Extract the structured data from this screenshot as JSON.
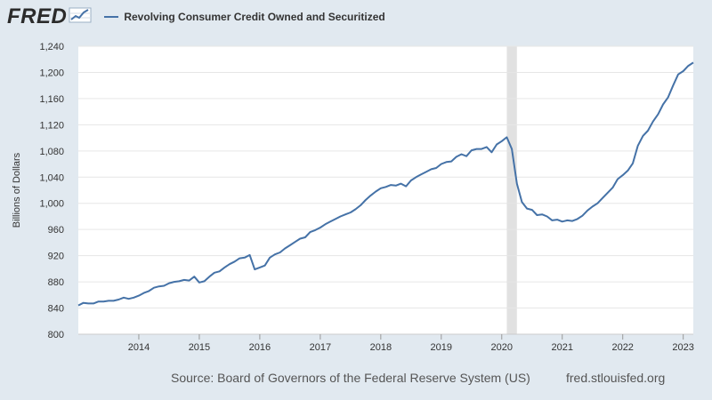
{
  "header": {
    "logo_text": "FRED",
    "logo_icon": "fred-graph-icon",
    "legend_label": "Revolving Consumer Credit Owned and Securitized"
  },
  "footer": {
    "source": "Source: Board of Governors of the Federal Reserve System (US)",
    "site": "fred.stlouisfed.org"
  },
  "colors": {
    "line": "#4572a7",
    "background": "#e1e9f0",
    "plot_background": "#ffffff",
    "recession_band": "#e1e1e1"
  },
  "chart_data": {
    "type": "line",
    "title": "",
    "xlabel": "",
    "ylabel": "Billions of Dollars",
    "ylim": [
      800,
      1240
    ],
    "yticks": [
      800,
      840,
      880,
      920,
      960,
      1000,
      1040,
      1080,
      1120,
      1160,
      1200,
      1240
    ],
    "ytick_labels": [
      "800",
      "840",
      "880",
      "920",
      "960",
      "1,000",
      "1,040",
      "1,080",
      "1,120",
      "1,160",
      "1,200",
      "1,240"
    ],
    "xlim": [
      "2013-01",
      "2023-03"
    ],
    "xticks": [
      "2014",
      "2015",
      "2016",
      "2017",
      "2018",
      "2019",
      "2020",
      "2021",
      "2022",
      "2023"
    ],
    "grid": "horizontal",
    "recession": {
      "start": "2020-02",
      "end": "2020-04"
    },
    "series": [
      {
        "name": "Revolving Consumer Credit Owned and Securitized",
        "points": [
          [
            "2013-01",
            844
          ],
          [
            "2013-02",
            848
          ],
          [
            "2013-03",
            847
          ],
          [
            "2013-04",
            847
          ],
          [
            "2013-05",
            850
          ],
          [
            "2013-06",
            850
          ],
          [
            "2013-07",
            851
          ],
          [
            "2013-08",
            851
          ],
          [
            "2013-09",
            853
          ],
          [
            "2013-10",
            856
          ],
          [
            "2013-11",
            854
          ],
          [
            "2013-12",
            856
          ],
          [
            "2014-01",
            859
          ],
          [
            "2014-02",
            863
          ],
          [
            "2014-03",
            866
          ],
          [
            "2014-04",
            871
          ],
          [
            "2014-05",
            873
          ],
          [
            "2014-06",
            874
          ],
          [
            "2014-07",
            878
          ],
          [
            "2014-08",
            880
          ],
          [
            "2014-09",
            881
          ],
          [
            "2014-10",
            883
          ],
          [
            "2014-11",
            882
          ],
          [
            "2014-12",
            888
          ],
          [
            "2015-01",
            879
          ],
          [
            "2015-02",
            881
          ],
          [
            "2015-03",
            888
          ],
          [
            "2015-04",
            894
          ],
          [
            "2015-05",
            896
          ],
          [
            "2015-06",
            902
          ],
          [
            "2015-07",
            907
          ],
          [
            "2015-08",
            911
          ],
          [
            "2015-09",
            916
          ],
          [
            "2015-10",
            917
          ],
          [
            "2015-11",
            921
          ],
          [
            "2015-12",
            899
          ],
          [
            "2016-01",
            902
          ],
          [
            "2016-02",
            905
          ],
          [
            "2016-03",
            917
          ],
          [
            "2016-04",
            922
          ],
          [
            "2016-05",
            925
          ],
          [
            "2016-06",
            931
          ],
          [
            "2016-07",
            936
          ],
          [
            "2016-08",
            941
          ],
          [
            "2016-09",
            946
          ],
          [
            "2016-10",
            948
          ],
          [
            "2016-11",
            956
          ],
          [
            "2016-12",
            959
          ],
          [
            "2017-01",
            963
          ],
          [
            "2017-02",
            968
          ],
          [
            "2017-03",
            972
          ],
          [
            "2017-04",
            976
          ],
          [
            "2017-05",
            980
          ],
          [
            "2017-06",
            983
          ],
          [
            "2017-07",
            986
          ],
          [
            "2017-08",
            991
          ],
          [
            "2017-09",
            997
          ],
          [
            "2017-10",
            1005
          ],
          [
            "2017-11",
            1012
          ],
          [
            "2017-12",
            1018
          ],
          [
            "2018-01",
            1023
          ],
          [
            "2018-02",
            1025
          ],
          [
            "2018-03",
            1028
          ],
          [
            "2018-04",
            1027
          ],
          [
            "2018-05",
            1030
          ],
          [
            "2018-06",
            1026
          ],
          [
            "2018-07",
            1035
          ],
          [
            "2018-08",
            1040
          ],
          [
            "2018-09",
            1044
          ],
          [
            "2018-10",
            1048
          ],
          [
            "2018-11",
            1052
          ],
          [
            "2018-12",
            1054
          ],
          [
            "2019-01",
            1060
          ],
          [
            "2019-02",
            1063
          ],
          [
            "2019-03",
            1064
          ],
          [
            "2019-04",
            1071
          ],
          [
            "2019-05",
            1075
          ],
          [
            "2019-06",
            1072
          ],
          [
            "2019-07",
            1081
          ],
          [
            "2019-08",
            1083
          ],
          [
            "2019-09",
            1083
          ],
          [
            "2019-10",
            1086
          ],
          [
            "2019-11",
            1078
          ],
          [
            "2019-12",
            1090
          ],
          [
            "2020-01",
            1095
          ],
          [
            "2020-02",
            1101
          ],
          [
            "2020-03",
            1083
          ],
          [
            "2020-04",
            1030
          ],
          [
            "2020-05",
            1002
          ],
          [
            "2020-06",
            992
          ],
          [
            "2020-07",
            990
          ],
          [
            "2020-08",
            982
          ],
          [
            "2020-09",
            983
          ],
          [
            "2020-10",
            980
          ],
          [
            "2020-11",
            974
          ],
          [
            "2020-12",
            975
          ],
          [
            "2021-01",
            972
          ],
          [
            "2021-02",
            974
          ],
          [
            "2021-03",
            973
          ],
          [
            "2021-04",
            976
          ],
          [
            "2021-05",
            981
          ],
          [
            "2021-06",
            989
          ],
          [
            "2021-07",
            995
          ],
          [
            "2021-08",
            1000
          ],
          [
            "2021-09",
            1008
          ],
          [
            "2021-10",
            1016
          ],
          [
            "2021-11",
            1024
          ],
          [
            "2021-12",
            1037
          ],
          [
            "2022-01",
            1043
          ],
          [
            "2022-02",
            1050
          ],
          [
            "2022-03",
            1061
          ],
          [
            "2022-04",
            1088
          ],
          [
            "2022-05",
            1103
          ],
          [
            "2022-06",
            1111
          ],
          [
            "2022-07",
            1125
          ],
          [
            "2022-08",
            1136
          ],
          [
            "2022-09",
            1151
          ],
          [
            "2022-10",
            1162
          ],
          [
            "2022-11",
            1180
          ],
          [
            "2022-12",
            1197
          ],
          [
            "2023-01",
            1202
          ],
          [
            "2023-02",
            1210
          ],
          [
            "2023-03",
            1215
          ]
        ]
      }
    ]
  }
}
